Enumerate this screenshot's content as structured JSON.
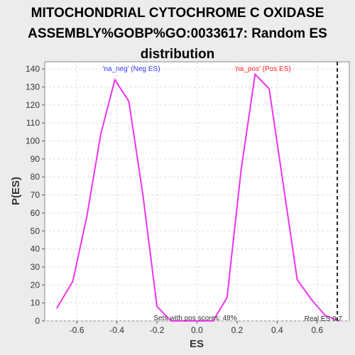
{
  "chart_data": {
    "type": "line",
    "title_lines": [
      "MITOCHONDRIAL CYTOCHROME C OXIDASE",
      "ASSEMBLY%GOBP%GO:0033617: Random ES",
      "distribution"
    ],
    "xlabel": "ES",
    "ylabel": "P(ES)",
    "xlim": [
      -0.76,
      0.76
    ],
    "ylim": [
      0,
      144
    ],
    "xticks": [
      -0.6,
      -0.4,
      -0.2,
      0.0,
      0.2,
      0.4,
      0.6
    ],
    "xtick_labels": [
      "-0.6",
      "-0.4",
      "-0.2",
      "0.0",
      "0.2",
      "0.4",
      "0.6"
    ],
    "yticks": [
      0,
      10,
      20,
      30,
      40,
      50,
      60,
      70,
      80,
      90,
      100,
      110,
      120,
      130,
      140
    ],
    "ytick_labels": [
      "0",
      "10",
      "20",
      "30",
      "40",
      "50",
      "60",
      "70",
      "80",
      "90",
      "100",
      "110",
      "120",
      "130",
      "140"
    ],
    "grid": true,
    "series": [
      {
        "color": "#ee33ee",
        "x": [
          -0.7,
          -0.62,
          -0.55,
          -0.48,
          -0.41,
          -0.34,
          -0.27,
          -0.2,
          -0.13,
          -0.06,
          0.01,
          0.08,
          0.15,
          0.22,
          0.29,
          0.36,
          0.43,
          0.5,
          0.57,
          0.64,
          0.71
        ],
        "y": [
          7,
          22,
          58,
          104,
          134,
          122,
          70,
          8,
          0,
          0,
          0,
          0,
          13,
          84,
          137,
          129,
          76,
          23,
          12,
          3,
          0
        ]
      }
    ],
    "real_es": 0.7,
    "annotations": {
      "neg_label": "'na_neg' (Neg ES)",
      "pos_label": "'na_pos' (Pos ES)",
      "pos_scores": "Sets with pos scores: 48%",
      "real_es_label": "Real ES 0.7"
    },
    "colors": {
      "neg": "#3333ff",
      "pos": "#ff2222",
      "curve": "#ee33ee"
    }
  }
}
